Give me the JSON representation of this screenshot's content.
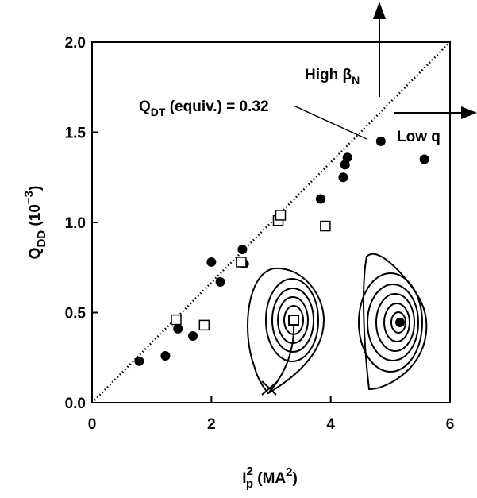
{
  "chart_data": {
    "type": "scatter",
    "x_label": {
      "main": "I",
      "sup": "2",
      "sub": "p",
      "rest": " (MA",
      "sup2": "2",
      "end": ")"
    },
    "y_label": {
      "main": "Q",
      "sub": "DD",
      "rest": " (10",
      "sup": "−3",
      "end": ")"
    },
    "series": [
      {
        "name": "filled",
        "color": "#000000",
        "marker": "circle",
        "x": [
          0.79,
          1.23,
          1.44,
          1.69,
          2.0,
          2.15,
          2.52,
          2.55,
          3.83,
          4.21,
          4.24,
          4.28,
          4.84,
          5.57
        ],
        "values": [
          0.23,
          0.26,
          0.41,
          0.37,
          0.78,
          0.67,
          0.85,
          0.77,
          1.13,
          1.25,
          1.32,
          1.36,
          1.45,
          1.35
        ]
      },
      {
        "name": "open",
        "color": "#000000",
        "marker": "square",
        "x": [
          1.41,
          1.88,
          2.5,
          3.12,
          3.16,
          3.91
        ],
        "values": [
          0.46,
          0.43,
          0.78,
          1.01,
          1.04,
          0.98
        ]
      }
    ],
    "reference_line": {
      "x": [
        0,
        6
      ],
      "y": [
        0,
        2
      ]
    },
    "reference_label": {
      "main": "Q",
      "sub": "DT",
      "rest": " (equiv.) = 0.32"
    },
    "arrow_up_label": {
      "main": "High β",
      "sub": "N"
    },
    "arrow_right_label": "Low q",
    "xlim": [
      0,
      6
    ],
    "xticks": [
      0,
      2,
      4,
      6
    ],
    "ylim": [
      0,
      2
    ],
    "yticks": [
      {
        "value": 0,
        "label": "0.0"
      },
      {
        "value": 0.5,
        "label": "0.5"
      },
      {
        "value": 1,
        "label": "1.0"
      },
      {
        "value": 1.5,
        "label": "1.5"
      },
      {
        "value": 2,
        "label": "2.0"
      }
    ]
  }
}
